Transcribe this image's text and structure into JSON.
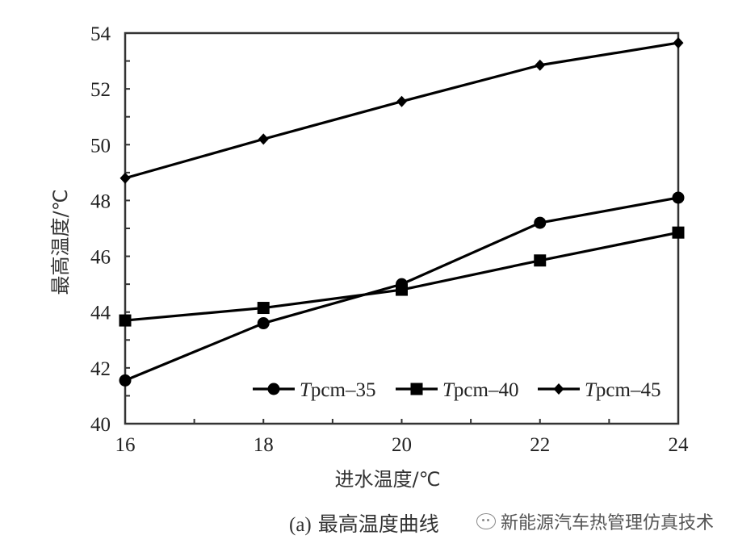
{
  "chart_data": {
    "type": "line",
    "title": "",
    "caption": "(a) 最高温度曲线",
    "xlabel": "进水温度/℃",
    "ylabel": "最高温度/℃",
    "x": [
      16,
      18,
      20,
      22,
      24
    ],
    "xlim": [
      16,
      24
    ],
    "ylim": [
      40,
      54
    ],
    "xticks": [
      16,
      18,
      20,
      22,
      24
    ],
    "xminor_ticks": [
      17,
      19,
      21,
      23
    ],
    "yticks": [
      40,
      42,
      44,
      46,
      48,
      50,
      52,
      54
    ],
    "yminor_ticks": [
      41,
      43,
      45,
      47,
      49,
      51,
      53
    ],
    "grid": false,
    "legend_position": "bottom-right inside",
    "series": [
      {
        "name": "Tpcm–35",
        "marker": "circle",
        "values": [
          41.55,
          43.6,
          45.0,
          47.2,
          48.1
        ]
      },
      {
        "name": "Tpcm–40",
        "marker": "square",
        "values": [
          43.7,
          44.15,
          44.8,
          45.85,
          46.85
        ]
      },
      {
        "name": "Tpcm–45",
        "marker": "diamond",
        "values": [
          48.8,
          50.2,
          51.55,
          52.85,
          53.65
        ]
      }
    ]
  },
  "legend": {
    "items": [
      {
        "prefix": "T",
        "suffix": "pcm–35"
      },
      {
        "prefix": "T",
        "suffix": "pcm–40"
      },
      {
        "prefix": "T",
        "suffix": "pcm–45"
      }
    ]
  },
  "caption": {
    "label": "(a)",
    "text": "最高温度曲线"
  },
  "watermark": {
    "icon": "wechat-icon",
    "text": "新能源汽车热管理仿真技术"
  },
  "colors": {
    "line": "#000000",
    "axis": "#333333",
    "background": "#ffffff"
  }
}
